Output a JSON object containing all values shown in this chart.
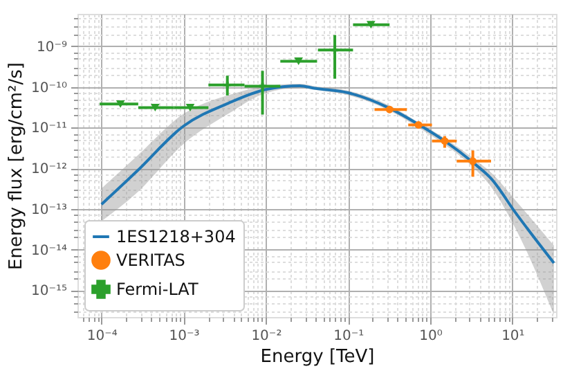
{
  "chart_data": {
    "type": "scatter",
    "xlabel": "Energy [TeV]",
    "ylabel": "Energy flux [erg/cm²/s]",
    "log": "xy",
    "grid": true,
    "legend": "bottom left",
    "xlim": [
      5.1e-05,
      34
    ],
    "ylim": [
      2.2e-16,
      6.3e-09
    ],
    "xticks": [
      {
        "value": 6e-05,
        "label": null
      },
      {
        "value": 7e-05,
        "label": null
      },
      {
        "value": 8e-05,
        "label": null
      },
      {
        "value": 9e-05,
        "label": null
      },
      {
        "value": 0.0001,
        "label": "10⁻⁴"
      },
      {
        "value": 0.0002,
        "label": null
      },
      {
        "value": 0.0003,
        "label": null
      },
      {
        "value": 0.0004,
        "label": null
      },
      {
        "value": 0.0005,
        "label": null
      },
      {
        "value": 0.0006,
        "label": null
      },
      {
        "value": 0.0007,
        "label": null
      },
      {
        "value": 0.0008,
        "label": null
      },
      {
        "value": 0.0009,
        "label": null
      },
      {
        "value": 0.001,
        "label": "10⁻³"
      },
      {
        "value": 0.002,
        "label": null
      },
      {
        "value": 0.003,
        "label": null
      },
      {
        "value": 0.004,
        "label": null
      },
      {
        "value": 0.005,
        "label": null
      },
      {
        "value": 0.006,
        "label": null
      },
      {
        "value": 0.007,
        "label": null
      },
      {
        "value": 0.008,
        "label": null
      },
      {
        "value": 0.009,
        "label": null
      },
      {
        "value": 0.01,
        "label": "10⁻²"
      },
      {
        "value": 0.02,
        "label": null
      },
      {
        "value": 0.03,
        "label": null
      },
      {
        "value": 0.04,
        "label": null
      },
      {
        "value": 0.05,
        "label": null
      },
      {
        "value": 0.06,
        "label": null
      },
      {
        "value": 0.07,
        "label": null
      },
      {
        "value": 0.08,
        "label": null
      },
      {
        "value": 0.09,
        "label": null
      },
      {
        "value": 0.1,
        "label": "10⁻¹"
      },
      {
        "value": 0.2,
        "label": null
      },
      {
        "value": 0.3,
        "label": null
      },
      {
        "value": 0.4,
        "label": null
      },
      {
        "value": 0.5,
        "label": null
      },
      {
        "value": 0.6,
        "label": null
      },
      {
        "value": 0.7,
        "label": null
      },
      {
        "value": 0.8,
        "label": null
      },
      {
        "value": 0.9,
        "label": null
      },
      {
        "value": 1,
        "label": "10⁰"
      },
      {
        "value": 2,
        "label": null
      },
      {
        "value": 3,
        "label": null
      },
      {
        "value": 4,
        "label": null
      },
      {
        "value": 5,
        "label": null
      },
      {
        "value": 6,
        "label": null
      },
      {
        "value": 7,
        "label": null
      },
      {
        "value": 8,
        "label": null
      },
      {
        "value": 9,
        "label": null
      },
      {
        "value": 10,
        "label": "10¹"
      },
      {
        "value": 20,
        "label": null
      },
      {
        "value": 30,
        "label": null
      }
    ],
    "yticks": [
      {
        "value": 3e-16,
        "label": null
      },
      {
        "value": 5e-16,
        "label": null
      },
      {
        "value": 7e-16,
        "label": null
      },
      {
        "value": 1e-15,
        "label": "10⁻¹⁵"
      },
      {
        "value": 2e-15,
        "label": null
      },
      {
        "value": 3e-15,
        "label": null
      },
      {
        "value": 5e-15,
        "label": null
      },
      {
        "value": 7e-15,
        "label": null
      },
      {
        "value": 1e-14,
        "label": "10⁻¹⁴"
      },
      {
        "value": 2e-14,
        "label": null
      },
      {
        "value": 3e-14,
        "label": null
      },
      {
        "value": 5e-14,
        "label": null
      },
      {
        "value": 7e-14,
        "label": null
      },
      {
        "value": 1e-13,
        "label": "10⁻¹³"
      },
      {
        "value": 2e-13,
        "label": null
      },
      {
        "value": 3e-13,
        "label": null
      },
      {
        "value": 5e-13,
        "label": null
      },
      {
        "value": 7e-13,
        "label": null
      },
      {
        "value": 1e-12,
        "label": "10⁻¹²"
      },
      {
        "value": 2e-12,
        "label": null
      },
      {
        "value": 3e-12,
        "label": null
      },
      {
        "value": 5e-12,
        "label": null
      },
      {
        "value": 7e-12,
        "label": null
      },
      {
        "value": 1e-11,
        "label": "10⁻¹¹"
      },
      {
        "value": 2e-11,
        "label": null
      },
      {
        "value": 3e-11,
        "label": null
      },
      {
        "value": 5e-11,
        "label": null
      },
      {
        "value": 7e-11,
        "label": null
      },
      {
        "value": 1e-10,
        "label": "10⁻¹⁰"
      },
      {
        "value": 2e-10,
        "label": null
      },
      {
        "value": 3e-10,
        "label": null
      },
      {
        "value": 5e-10,
        "label": null
      },
      {
        "value": 7e-10,
        "label": null
      },
      {
        "value": 1e-09,
        "label": "10⁻⁹"
      },
      {
        "value": 2e-09,
        "label": null
      },
      {
        "value": 3e-09,
        "label": null
      },
      {
        "value": 5e-09,
        "label": null
      }
    ],
    "series": [
      {
        "name": "1ES1218+304",
        "type": "line",
        "color": "#1f77b4",
        "x": [
          0.0001,
          0.00027,
          0.001,
          0.0035,
          0.01,
          0.026,
          0.039,
          0.1,
          0.32,
          0.72,
          1.5,
          3.3,
          5.5,
          11,
          32
        ],
        "values": [
          1.3e-13,
          8.5e-13,
          1.1e-11,
          4e-11,
          8.7e-11,
          1.07e-10,
          9.3e-11,
          7.2e-11,
          3e-11,
          1.2e-11,
          4.7e-12,
          1.4e-12,
          5.6e-13,
          7.9e-14,
          4.7e-15
        ],
        "lower": [
          5e-14,
          2.5e-13,
          4e-12,
          2.2e-11,
          7.1e-11,
          9.5e-11,
          8.5e-11,
          6.3e-11,
          2.6e-11,
          1e-11,
          3.8e-12,
          1.07e-12,
          3.5e-13,
          3.2e-14,
          2.5e-16
        ],
        "upper": [
          3.2e-13,
          2e-12,
          2.2e-11,
          6.3e-11,
          1.05e-10,
          1.2e-10,
          1.05e-10,
          8.1e-11,
          3.5e-11,
          1.35e-11,
          5.5e-12,
          1.8e-12,
          7.9e-13,
          1.6e-13,
          1.26e-14
        ]
      },
      {
        "name": "VERITAS",
        "marker": "circle",
        "color": "#ff7f0e",
        "x": [
          0.32,
          0.72,
          1.5,
          3.3
        ],
        "values": [
          2.8e-11,
          1.17e-11,
          4.7e-12,
          1.5e-12
        ],
        "xerrors": [
          [
            0.21,
            0.52
          ],
          [
            0.54,
            1.05
          ],
          [
            1.05,
            2.1
          ],
          [
            2.1,
            5.5
          ]
        ],
        "errors": [
          [
            2.5e-11,
            3.2e-11
          ],
          [
            1e-11,
            1.35e-11
          ],
          [
            3.2e-12,
            6.2e-12
          ],
          [
            6.2e-13,
            2.75e-12
          ]
        ]
      },
      {
        "name": "Fermi-LAT",
        "color": "#2ca02c",
        "x": [
          0.0034,
          0.0091,
          0.069
        ],
        "values": [
          1.12e-10,
          1.05e-10,
          8.1e-10
        ],
        "xerrors": [
          [
            0.002,
            0.0055
          ],
          [
            0.0055,
            0.015
          ],
          [
            0.043,
            0.115
          ]
        ],
        "errors": [
          [
            6.2e-11,
            1.9e-10
          ],
          [
            2.1e-11,
            2.5e-10
          ],
          [
            1.6e-10,
            1.9e-09
          ]
        ]
      },
      {
        "marker": "triangle",
        "color": "#2ca02c",
        "x": [
          0.00017,
          0.00045,
          0.0012,
          0.025,
          0.19
        ],
        "values": [
          3.8e-11,
          3.1e-11,
          3.1e-11,
          4.3e-10,
          3.4e-09
        ],
        "xerrors": [
          [
            9.5e-05,
            0.00028
          ],
          [
            0.00028,
            0.00076
          ],
          [
            0.00076,
            0.002
          ],
          [
            0.015,
            0.042
          ],
          [
            0.115,
            0.32
          ]
        ]
      }
    ]
  }
}
